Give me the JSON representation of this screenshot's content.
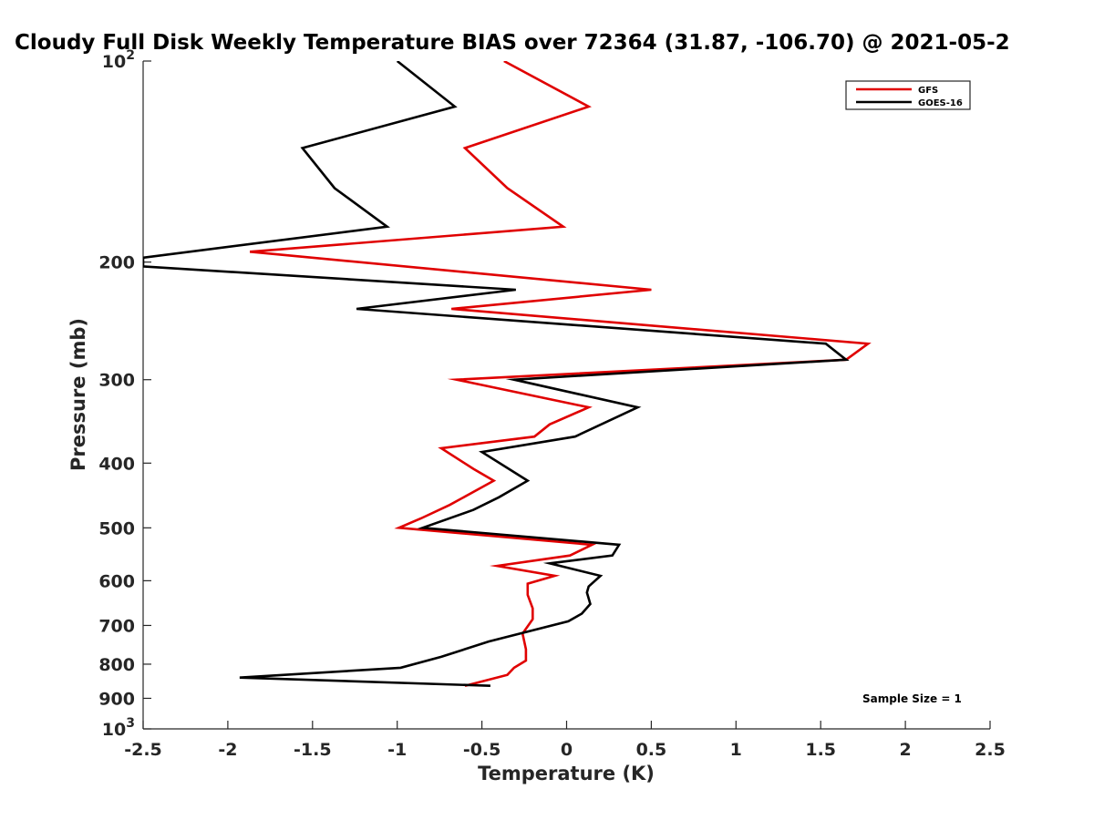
{
  "chart_data": {
    "type": "line",
    "title": "Cloudy Full Disk Weekly Temperature BIAS over 72364 (31.87, -106.70) @ 2021-05-2",
    "xlabel": "Temperature (K)",
    "ylabel": "Pressure (mb)",
    "xlim": [
      -2.5,
      2.5
    ],
    "ylim": [
      100,
      1000
    ],
    "y_scale": "log",
    "y_reversed": true,
    "x_ticks": [
      -2.5,
      -2,
      -1.5,
      -1,
      -0.5,
      0,
      0.5,
      1,
      1.5,
      2,
      2.5
    ],
    "x_tick_labels": [
      "-2.5",
      "-2",
      "-1.5",
      "-1",
      "-0.5",
      "0",
      "0.5",
      "1",
      "1.5",
      "2",
      "2.5"
    ],
    "y_ticks": [
      {
        "value": 100,
        "label": "10",
        "sup": "2"
      },
      {
        "value": 200,
        "label": "200"
      },
      {
        "value": 300,
        "label": "300"
      },
      {
        "value": 400,
        "label": "400"
      },
      {
        "value": 500,
        "label": "500"
      },
      {
        "value": 600,
        "label": "600"
      },
      {
        "value": 700,
        "label": "700"
      },
      {
        "value": 800,
        "label": "800"
      },
      {
        "value": 900,
        "label": "900"
      },
      {
        "value": 1000,
        "label": "10",
        "sup": "3"
      }
    ],
    "grid": false,
    "legend_position": "top-right",
    "annotation": "Sample Size = 1",
    "series": [
      {
        "name": "GFS",
        "color": "#e00000",
        "points": [
          [
            -0.37,
            100
          ],
          [
            0.13,
            117
          ],
          [
            -0.6,
            135
          ],
          [
            -0.35,
            155
          ],
          [
            -0.02,
            177
          ],
          [
            -1.87,
            193
          ],
          [
            0.5,
            220
          ],
          [
            -0.68,
            235
          ],
          [
            1.78,
            265
          ],
          [
            1.65,
            280
          ],
          [
            -0.65,
            300
          ],
          [
            0.13,
            330
          ],
          [
            -0.1,
            350
          ],
          [
            -0.19,
            365
          ],
          [
            -0.74,
            380
          ],
          [
            -0.55,
            408
          ],
          [
            -0.43,
            425
          ],
          [
            -0.69,
            462
          ],
          [
            -0.86,
            484
          ],
          [
            -0.99,
            500
          ],
          [
            0.15,
            530
          ],
          [
            0.02,
            550
          ],
          [
            -0.41,
            570
          ],
          [
            -0.07,
            590
          ],
          [
            -0.23,
            606
          ],
          [
            -0.23,
            630
          ],
          [
            -0.2,
            660
          ],
          [
            -0.2,
            685
          ],
          [
            -0.26,
            720
          ],
          [
            -0.24,
            760
          ],
          [
            -0.24,
            790
          ],
          [
            -0.31,
            810
          ],
          [
            -0.35,
            830
          ],
          [
            -0.6,
            862
          ]
        ]
      },
      {
        "name": "GOES-16",
        "color": "#000000",
        "points": [
          [
            -1.0,
            100
          ],
          [
            -0.66,
            117
          ],
          [
            -1.56,
            135
          ],
          [
            -1.37,
            155
          ],
          [
            -1.06,
            177
          ],
          [
            -2.5,
            197
          ],
          [
            -2.5,
            203
          ],
          [
            -0.3,
            220
          ],
          [
            -1.24,
            235
          ],
          [
            1.53,
            265
          ],
          [
            1.65,
            280
          ],
          [
            -0.31,
            300
          ],
          [
            0.42,
            330
          ],
          [
            0.05,
            365
          ],
          [
            -0.5,
            385
          ],
          [
            -0.23,
            425
          ],
          [
            -0.4,
            450
          ],
          [
            -0.55,
            470
          ],
          [
            -0.85,
            500
          ],
          [
            0.31,
            530
          ],
          [
            0.27,
            550
          ],
          [
            -0.1,
            565
          ],
          [
            0.2,
            590
          ],
          [
            0.13,
            612
          ],
          [
            0.12,
            625
          ],
          [
            0.14,
            650
          ],
          [
            0.09,
            672
          ],
          [
            0.01,
            690
          ],
          [
            -0.46,
            740
          ],
          [
            -0.74,
            780
          ],
          [
            -0.98,
            810
          ],
          [
            -1.93,
            838
          ],
          [
            -0.45,
            862
          ]
        ]
      }
    ]
  }
}
